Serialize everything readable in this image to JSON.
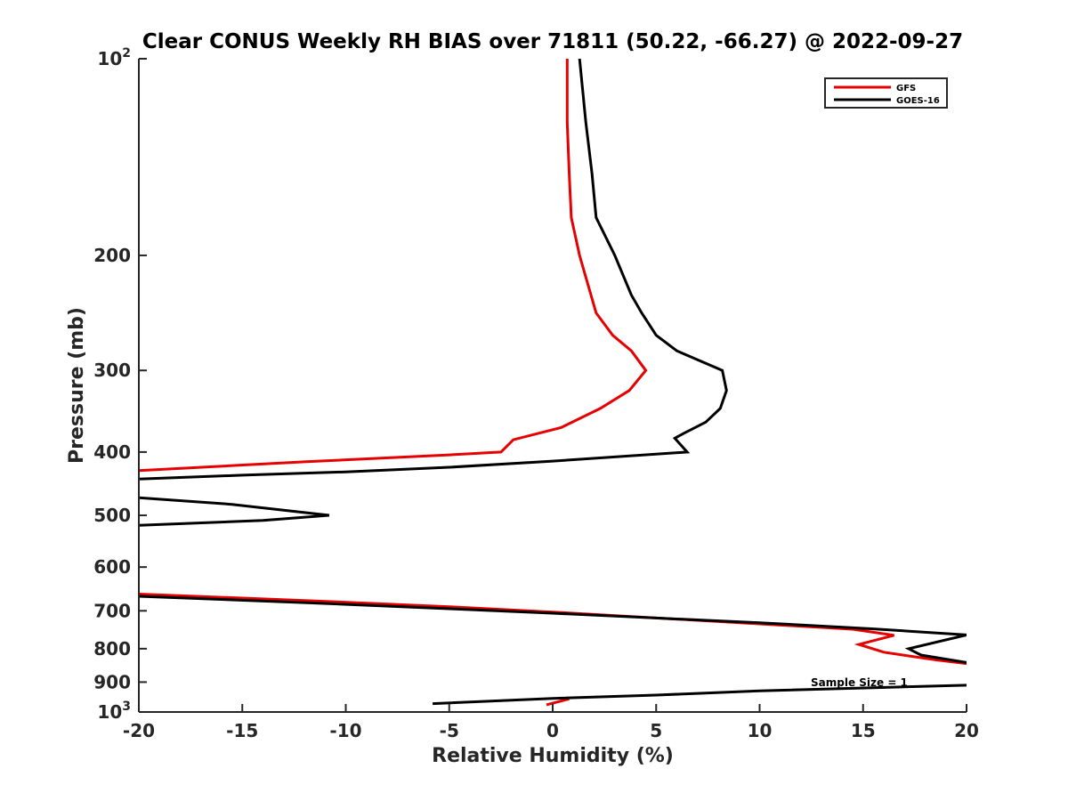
{
  "chart_data": {
    "type": "line",
    "title": "Clear CONUS Weekly RH BIAS over 71811 (50.22, -66.27) @ 2022-09-27",
    "xlabel": "Relative Humidity (%)",
    "ylabel": "Pressure (mb)",
    "xlim": [
      -20,
      20
    ],
    "ylim": [
      100,
      1000
    ],
    "y_scale": "log",
    "y_reversed": true,
    "grid": false,
    "legend_position": "top-right",
    "x_ticks": [
      "-20",
      "-15",
      "-10",
      "-5",
      "0",
      "5",
      "10",
      "15",
      "20"
    ],
    "y_ticks": [
      {
        "value": 100,
        "base": "10",
        "exp": "2"
      },
      {
        "value": 200,
        "label": "200"
      },
      {
        "value": 300,
        "label": "300"
      },
      {
        "value": 400,
        "label": "400"
      },
      {
        "value": 500,
        "label": "500"
      },
      {
        "value": 600,
        "label": "600"
      },
      {
        "value": 700,
        "label": "700"
      },
      {
        "value": 800,
        "label": "800"
      },
      {
        "value": 900,
        "label": "900"
      },
      {
        "value": 1000,
        "base": "10",
        "exp": "3"
      }
    ],
    "annotation": "Sample Size = 1",
    "series": [
      {
        "name": "GFS",
        "color": "#e60000",
        "segments": [
          [
            [
              0.7,
              100
            ],
            [
              0.7,
              125
            ],
            [
              0.8,
              150
            ],
            [
              0.9,
              175
            ],
            [
              1.3,
              200
            ],
            [
              2.1,
              245
            ],
            [
              2.9,
              265
            ],
            [
              3.8,
              280
            ],
            [
              4.5,
              300
            ],
            [
              3.7,
              322
            ],
            [
              2.3,
              343
            ],
            [
              0.4,
              367
            ],
            [
              -1.9,
              383
            ],
            [
              -2.5,
              400
            ],
            [
              -5,
              404
            ],
            [
              -12,
              414
            ],
            [
              -20,
              427
            ]
          ],
          [
            [
              -20,
              660
            ],
            [
              -12,
              675
            ],
            [
              -5,
              690
            ],
            [
              0,
              703
            ],
            [
              5,
              718
            ],
            [
              10,
              733
            ],
            [
              14.5,
              747
            ],
            [
              16.5,
              763
            ],
            [
              14.8,
              788
            ],
            [
              16,
              810
            ],
            [
              18.5,
              832
            ],
            [
              20,
              843
            ]
          ],
          [
            [
              0.8,
              955
            ],
            [
              -0.3,
              975
            ]
          ]
        ]
      },
      {
        "name": "GOES-16",
        "color": "#000000",
        "segments": [
          [
            [
              1.3,
              100
            ],
            [
              1.6,
              125
            ],
            [
              1.9,
              150
            ],
            [
              2.1,
              175
            ],
            [
              3.0,
              200
            ],
            [
              3.8,
              230
            ],
            [
              4.3,
              245
            ],
            [
              5.0,
              265
            ],
            [
              6.0,
              280
            ],
            [
              8.2,
              300
            ],
            [
              8.4,
              322
            ],
            [
              8.1,
              343
            ],
            [
              7.4,
              360
            ],
            [
              6.3,
              375
            ],
            [
              5.9,
              381
            ],
            [
              6.5,
              400
            ],
            [
              0,
              413
            ],
            [
              -5,
              422
            ],
            [
              -10,
              429
            ],
            [
              -15,
              434
            ],
            [
              -20,
              440
            ]
          ],
          [
            [
              -20,
              470
            ],
            [
              -15.5,
              481
            ],
            [
              -10.8,
              500
            ],
            [
              -14,
              509
            ],
            [
              -20,
              518
            ]
          ],
          [
            [
              -20,
              665
            ],
            [
              -12,
              680
            ],
            [
              -5,
              695
            ],
            [
              0,
              706
            ],
            [
              5,
              718
            ],
            [
              10,
              730
            ],
            [
              15.5,
              746
            ],
            [
              20,
              762
            ],
            [
              17.2,
              800
            ],
            [
              17.8,
              818
            ],
            [
              20,
              840
            ]
          ],
          [
            [
              20,
              910
            ],
            [
              10,
              928
            ],
            [
              5,
              942
            ],
            [
              0,
              953
            ],
            [
              -5.8,
              971
            ]
          ]
        ]
      }
    ]
  }
}
